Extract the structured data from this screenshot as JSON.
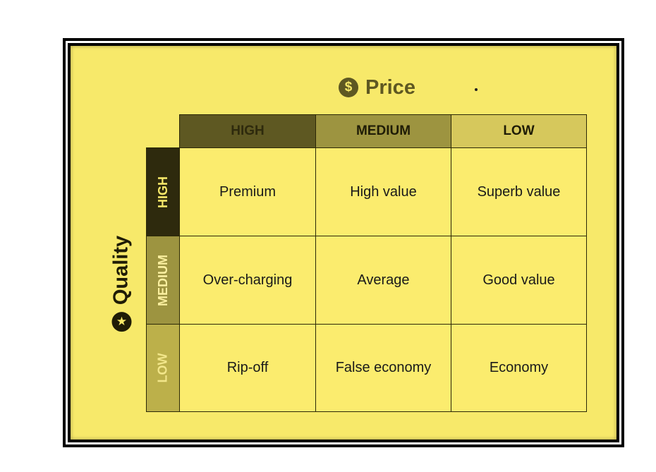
{
  "colors": {
    "background": "#f7e96a",
    "high": "#5e5822",
    "medium": "#9d9440",
    "low": "#d6c85c",
    "row_high": "#2e2a0d"
  },
  "price": {
    "icon": "dollar-coin-icon",
    "title": "Price"
  },
  "quality": {
    "icon": "star-circle-icon",
    "title": "Quality"
  },
  "columns": [
    "HIGH",
    "MEDIUM",
    "LOW"
  ],
  "rows": [
    "HIGH",
    "MEDIUM",
    "LOW"
  ],
  "grid": [
    [
      "Premium",
      "High value",
      "Superb value"
    ],
    [
      "Over-charging",
      "Average",
      "Good value"
    ],
    [
      "Rip-off",
      "False economy",
      "Economy"
    ]
  ]
}
